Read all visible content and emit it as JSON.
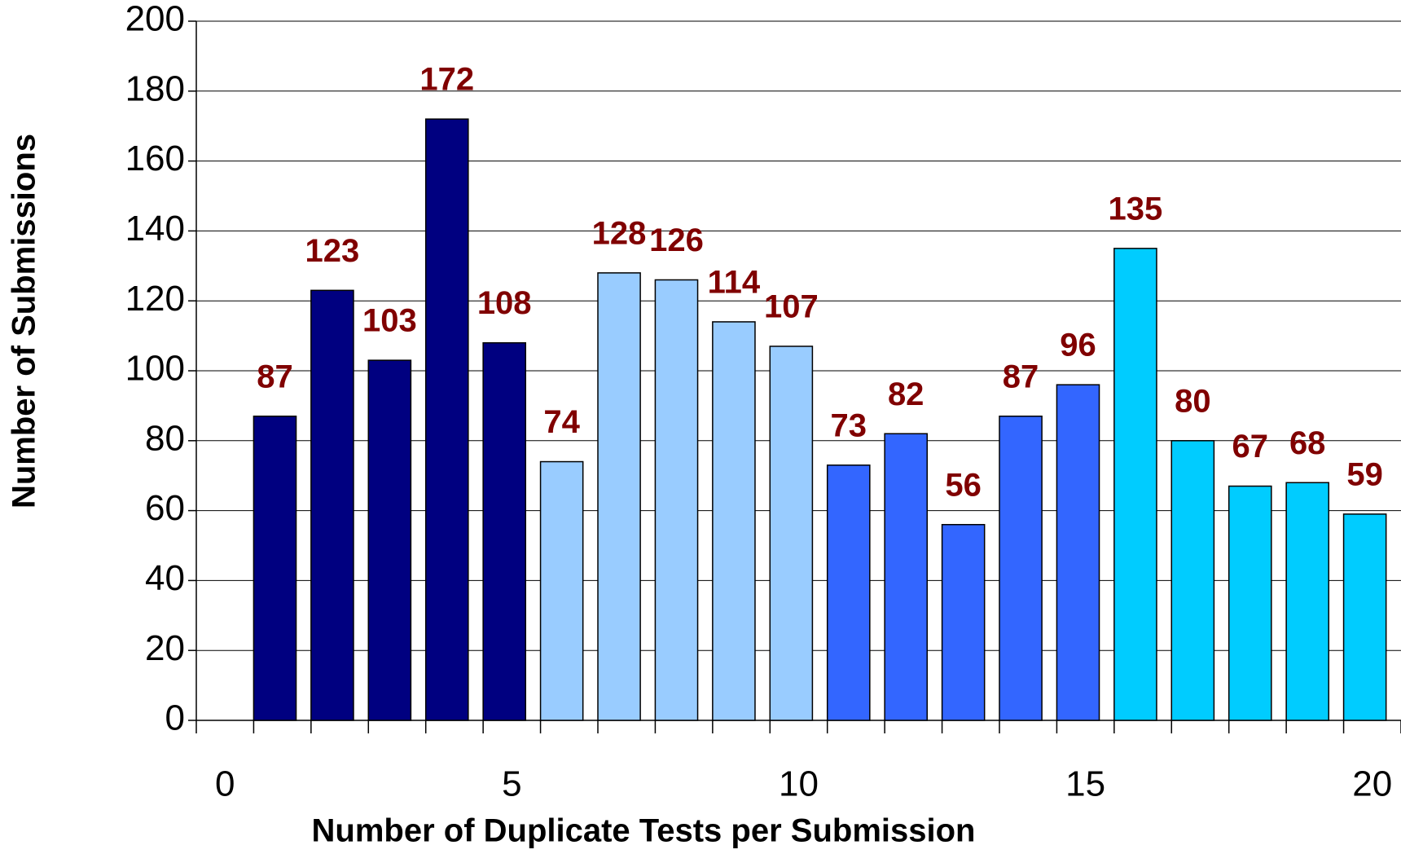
{
  "chart_data": {
    "type": "bar",
    "x_label": "Number of Duplicate Tests per Submission",
    "y_label": "Number of Submissions",
    "x": [
      1,
      2,
      3,
      4,
      5,
      6,
      7,
      8,
      9,
      10,
      11,
      12,
      13,
      14,
      15,
      16,
      17,
      18,
      19,
      20
    ],
    "values": [
      87,
      123,
      103,
      172,
      108,
      74,
      128,
      126,
      114,
      107,
      73,
      82,
      56,
      87,
      96,
      135,
      80,
      67,
      68,
      59
    ],
    "colors": [
      "#000080",
      "#000080",
      "#000080",
      "#000080",
      "#000080",
      "#99ccff",
      "#99ccff",
      "#99ccff",
      "#99ccff",
      "#99ccff",
      "#3366ff",
      "#3366ff",
      "#3366ff",
      "#3366ff",
      "#3366ff",
      "#00ccff",
      "#00ccff",
      "#00ccff",
      "#00ccff",
      "#00ccff"
    ],
    "label_color": "#800000",
    "xlim": [
      -0.5,
      20.5
    ],
    "xticks": [
      0,
      5,
      10,
      15,
      20
    ],
    "ylim": [
      0,
      200
    ],
    "yticks": [
      0,
      20,
      40,
      60,
      80,
      100,
      120,
      140,
      160,
      180,
      200
    ],
    "grid": true
  }
}
